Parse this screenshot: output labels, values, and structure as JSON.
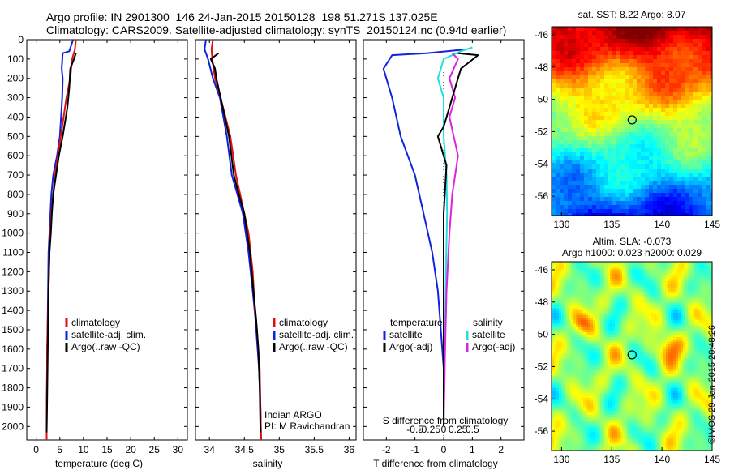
{
  "header": {
    "line1": "Argo profile: IN 2901300_146 24-Jan-2015 20150128_198 51.271S 137.025E",
    "line2": "Climatology: CARS2009. Satellite-adjusted climatology: synTS_20150124.nc (0.94d earlier)"
  },
  "stamp": "©IMOS 29-Jan-2015 20:48:26",
  "colors": {
    "climatology": "#dd1111",
    "satellite": "#1122dd",
    "argo": "#000000",
    "sal_satellite": "#22dddd",
    "sal_argo": "#dd22dd"
  },
  "chart_data": [
    {
      "type": "line",
      "name": "temperature-profile",
      "xlabel": "temperature (deg C)",
      "ylabel": "",
      "xlim": [
        -2,
        32
      ],
      "ylim": [
        2070,
        0
      ],
      "xticks": [
        0,
        5,
        10,
        15,
        20,
        25,
        30
      ],
      "yticks": [
        0,
        100,
        200,
        300,
        400,
        500,
        600,
        700,
        800,
        900,
        1000,
        1100,
        1200,
        1300,
        1400,
        1500,
        1600,
        1700,
        1800,
        1900,
        2000
      ],
      "legend": [
        "climatology",
        "satellite-adj. clim.",
        "Argo(..raw -QC)"
      ],
      "legend_position": "center-right",
      "series": [
        {
          "name": "climatology",
          "x": [
            8.4,
            8.2,
            7.6,
            7.2,
            6.4,
            5.2,
            4.6,
            4.0,
            3.6,
            3.2,
            3.0,
            2.8,
            2.6,
            2.5,
            2.4,
            2.3,
            2.3,
            2.2,
            2.2
          ],
          "y": [
            0,
            50,
            100,
            200,
            300,
            500,
            600,
            700,
            800,
            900,
            1000,
            1100,
            1300,
            1400,
            1500,
            1600,
            1800,
            1900,
            2070
          ]
        },
        {
          "name": "satellite-adj. clim.",
          "x": [
            7.8,
            7.0,
            5.6,
            5.4,
            5.6,
            5.5,
            5.0,
            4.4,
            3.6,
            3.2,
            3.0,
            2.8,
            2.6,
            2.5,
            2.4,
            2.3,
            2.2,
            2.2
          ],
          "y": [
            0,
            60,
            70,
            150,
            200,
            300,
            500,
            600,
            700,
            800,
            900,
            1000,
            1100,
            1300,
            1500,
            1700,
            1900,
            2070
          ]
        },
        {
          "name": "Argo(..raw -QC)",
          "x": [
            8.4,
            8.0,
            7.2,
            7.0,
            6.6,
            5.6,
            4.8,
            4.2,
            3.6,
            3.3,
            3.1,
            2.8,
            2.6,
            2.5,
            2.4,
            2.3,
            2.2
          ],
          "y": [
            70,
            100,
            150,
            250,
            350,
            500,
            600,
            700,
            800,
            900,
            1000,
            1100,
            1300,
            1500,
            1700,
            1900,
            2030
          ]
        }
      ]
    },
    {
      "type": "line",
      "name": "salinity-profile",
      "xlabel": "salinity",
      "ylabel": "",
      "xlim": [
        33.8,
        36.1
      ],
      "ylim": [
        2070,
        0
      ],
      "xticks": [
        34,
        34.5,
        35,
        35.5,
        36
      ],
      "xticklabels": [
        "34",
        "34.5",
        "35",
        "35.5",
        "36"
      ],
      "legend": [
        "climatology",
        "satellite-adj. clim.",
        "Argo(..raw -QC)"
      ],
      "legend_position": "center-right",
      "annotation": [
        "Indian ARGO",
        "PI: M Ravichandran"
      ],
      "series": [
        {
          "name": "climatology",
          "x": [
            34.05,
            34.03,
            34.04,
            34.08,
            34.16,
            34.3,
            34.38,
            34.44,
            34.5,
            34.56,
            34.62,
            34.65,
            34.68,
            34.7,
            34.72,
            34.73,
            34.74
          ],
          "y": [
            0,
            50,
            100,
            200,
            300,
            500,
            700,
            800,
            900,
            1000,
            1200,
            1400,
            1500,
            1600,
            1700,
            1900,
            2070
          ]
        },
        {
          "name": "satellite-adj. clim.",
          "x": [
            33.95,
            33.93,
            33.98,
            34.05,
            34.15,
            34.25,
            34.32,
            34.4,
            34.48,
            34.56,
            34.62,
            34.66,
            34.69,
            34.71,
            34.73,
            34.74
          ],
          "y": [
            0,
            50,
            100,
            200,
            300,
            500,
            700,
            800,
            900,
            1100,
            1300,
            1450,
            1600,
            1700,
            1900,
            2070
          ]
        },
        {
          "name": "Argo(..raw -QC)",
          "x": [
            34.13,
            34.02,
            34.08,
            34.1,
            34.16,
            34.28,
            34.35,
            34.42,
            34.5,
            34.58,
            34.63,
            34.67,
            34.7,
            34.72,
            34.73
          ],
          "y": [
            70,
            100,
            150,
            200,
            300,
            500,
            700,
            800,
            900,
            1100,
            1300,
            1450,
            1600,
            1800,
            2030
          ]
        }
      ]
    },
    {
      "type": "line",
      "name": "difference-profile",
      "xlabel": "T difference from climatology",
      "xlabel_top": "S difference from climatology",
      "xlim": [
        -2.8,
        2.8
      ],
      "ylim": [
        2070,
        0
      ],
      "xticks": [
        -2,
        -1,
        0,
        1,
        2
      ],
      "xticklabels": [
        "-2",
        "-1",
        "0",
        "1",
        "2"
      ],
      "sticks": [
        "-0.5",
        "-0.25",
        "0",
        "0.25",
        "0.5"
      ],
      "legend": [
        "temperature",
        "satellite",
        "Argo(-adj)",
        "salinity",
        "satellite",
        "Argo(-adj)"
      ],
      "legend_position": "center",
      "series": [
        {
          "name": "temperature satellite",
          "x": [
            0.8,
            -0.6,
            -1.8,
            -2.1,
            -1.8,
            -1.5,
            -1.0,
            -0.7,
            -0.4,
            -0.2,
            -0.1,
            0.0,
            0.0
          ],
          "y": [
            50,
            70,
            80,
            150,
            300,
            500,
            700,
            900,
            1100,
            1300,
            1500,
            1700,
            2000
          ]
        },
        {
          "name": "temperature Argo(-adj)",
          "x": [
            0.5,
            1.2,
            0.6,
            0.4,
            0.2,
            0.0,
            -0.2,
            0.1,
            0.0,
            0.0,
            0.0
          ],
          "y": [
            70,
            80,
            150,
            250,
            350,
            450,
            500,
            650,
            900,
            1500,
            2000
          ]
        },
        {
          "name": "salinity satellite",
          "x": [
            1.0,
            0.6,
            0.0,
            -0.2,
            0.0,
            0.0,
            0.1,
            0.12,
            0.08,
            0.04,
            0.0
          ],
          "y": [
            40,
            60,
            100,
            200,
            300,
            500,
            700,
            900,
            1200,
            1600,
            2000
          ]
        },
        {
          "name": "salinity Argo(-adj)",
          "x": [
            0.3,
            0.5,
            0.2,
            0.4,
            0.2,
            0.5,
            0.3,
            0.2,
            0.1,
            0.05,
            0.0
          ],
          "y": [
            70,
            100,
            200,
            300,
            400,
            600,
            800,
            1000,
            1300,
            1600,
            2000
          ]
        }
      ]
    },
    {
      "type": "heatmap",
      "name": "sst-map",
      "title": "sat. SST: 8.22  Argo: 8.07",
      "xlim": [
        129,
        145
      ],
      "ylim": [
        -57.2,
        -45.5
      ],
      "xticks": [
        130,
        135,
        140,
        145
      ],
      "yticks": [
        -46,
        -48,
        -50,
        -52,
        -54,
        -56
      ],
      "marker": {
        "lon": 137.025,
        "lat": -51.271
      }
    },
    {
      "type": "heatmap",
      "name": "sla-map",
      "title": "Altim. SLA: -0.073",
      "subtitle": "Argo h1000: 0.023 h2000: 0.029",
      "xlim": [
        129,
        145
      ],
      "ylim": [
        -57.2,
        -45.5
      ],
      "xticks": [
        130,
        135,
        140,
        145
      ],
      "yticks": [
        -46,
        -48,
        -50,
        -52,
        -54,
        -56
      ],
      "marker": {
        "lon": 137.025,
        "lat": -51.271
      }
    }
  ]
}
